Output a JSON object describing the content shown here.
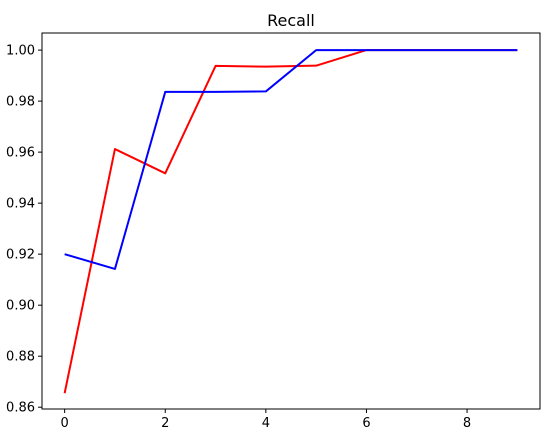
{
  "chart_data": {
    "type": "line",
    "title": "Recall",
    "xlabel": "",
    "ylabel": "",
    "x": [
      0,
      1,
      2,
      3,
      4,
      5,
      6,
      7,
      8,
      9
    ],
    "xlim": [
      -0.45,
      9.45
    ],
    "ylim": [
      0.8593,
      1.0067
    ],
    "xticks": [
      0,
      2,
      4,
      6,
      8
    ],
    "xtick_labels": [
      "0",
      "2",
      "4",
      "6",
      "8"
    ],
    "yticks": [
      0.86,
      0.88,
      0.9,
      0.92,
      0.94,
      0.96,
      0.98,
      1.0
    ],
    "ytick_labels": [
      "0.86",
      "0.88",
      "0.90",
      "0.92",
      "0.94",
      "0.96",
      "0.98",
      "1.00"
    ],
    "grid": false,
    "series": [
      {
        "color": "#ff0000",
        "values": [
          0.8655,
          0.9612,
          0.9517,
          0.9938,
          0.9935,
          0.9939,
          1.0,
          1.0,
          1.0,
          1.0
        ]
      },
      {
        "color": "#0000ff",
        "values": [
          0.92,
          0.9142,
          0.9836,
          0.9836,
          0.9838,
          1.0,
          1.0,
          1.0,
          1.0,
          1.0
        ]
      }
    ]
  }
}
